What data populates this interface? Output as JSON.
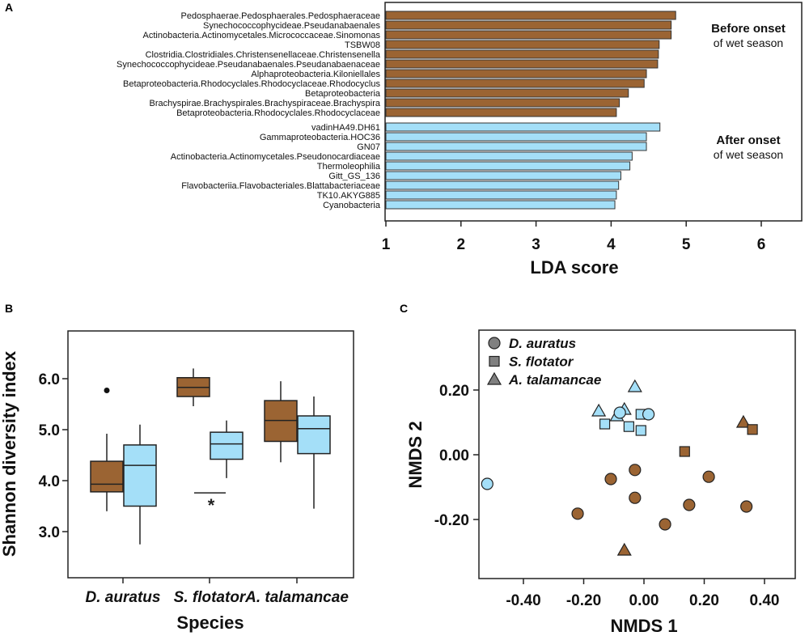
{
  "colors": {
    "before": "#9b6433",
    "after": "#a4dff8",
    "legend": "#808080"
  },
  "panel_labels": [
    "A",
    "B",
    "C"
  ],
  "chart_data": [
    {
      "type": "bar",
      "orientation": "horizontal",
      "xlabel": "LDA score",
      "xlim": [
        1,
        6.55
      ],
      "xticks": [
        "1",
        "2",
        "3",
        "4",
        "5",
        "6"
      ],
      "groups": [
        {
          "name_line1": "Before onset",
          "name_line2": "of wet season",
          "color": "before",
          "categories": [
            "Pedosphaerae.Pedosphaerales.Pedosphaeraceae",
            "Synechococcophycideae.Pseudanabaenales",
            "Actinobacteria.Actinomycetales.Micrococcaceae.Sinomonas",
            "TSBW08",
            "Clostridia.Clostridiales.Christensenellaceae.Christensenella",
            "Synechococcophycideae.Pseudanabaenales.Pseudanabaenaceae",
            "Alphaproteobacteria.Kiloniellales",
            "Betaproteobacteria.Rhodocyclales.Rhodocyclaceae.Rhodocyclus",
            "Betaproteobacteria",
            "Brachyspirae.Brachyspirales.Brachyspiraceae.Brachyspira",
            "Betaproteobacteria.Rhodocyclales.Rhodocyclaceae"
          ],
          "values": [
            4.86,
            4.8,
            4.8,
            4.64,
            4.63,
            4.62,
            4.47,
            4.44,
            4.23,
            4.11,
            4.07
          ]
        },
        {
          "name_line1": "After onset",
          "name_line2": "of wet season",
          "color": "after",
          "categories": [
            "vadinHA49.DH61",
            "Gammaproteobacteria.HOC36",
            "GN07",
            "Actinobacteria.Actinomycetales.Pseudonocardiaceae",
            "Thermoleophilia",
            "Gitt_GS_136",
            "Flavobacteriia.Flavobacteriales.Blattabacteriaceae",
            "TK10.AKYG885",
            "Cyanobacteria"
          ],
          "values": [
            4.65,
            4.47,
            4.47,
            4.28,
            4.25,
            4.13,
            4.1,
            4.07,
            4.05
          ]
        }
      ]
    },
    {
      "type": "boxplot",
      "xlabel": "Species",
      "ylabel": "Shannon diversity index",
      "ylim": [
        2.08,
        6.94
      ],
      "yticks": [
        "3.0",
        "4.0",
        "5.0",
        "6.0"
      ],
      "categories": [
        "D. auratus",
        "S. flotator",
        "A. talamancae"
      ],
      "boxes": [
        {
          "cat": 0,
          "season": "before",
          "min": 3.4,
          "q1": 3.78,
          "median": 3.93,
          "q3": 4.38,
          "max": 4.92,
          "outliers": [
            5.77
          ]
        },
        {
          "cat": 0,
          "season": "after",
          "min": 2.75,
          "q1": 3.5,
          "median": 4.3,
          "q3": 4.7,
          "max": 5.1,
          "outliers": []
        },
        {
          "cat": 1,
          "season": "before",
          "min": 5.46,
          "q1": 5.65,
          "median": 5.83,
          "q3": 6.02,
          "max": 6.2,
          "outliers": []
        },
        {
          "cat": 1,
          "season": "after",
          "min": 4.05,
          "q1": 4.42,
          "median": 4.72,
          "q3": 4.95,
          "max": 5.18,
          "outliers": []
        },
        {
          "cat": 2,
          "season": "before",
          "min": 4.36,
          "q1": 4.77,
          "median": 5.18,
          "q3": 5.57,
          "max": 5.95,
          "outliers": []
        },
        {
          "cat": 2,
          "season": "after",
          "min": 3.45,
          "q1": 4.53,
          "median": 5.02,
          "q3": 5.27,
          "max": 5.65,
          "outliers": []
        }
      ],
      "significance": {
        "category": 1,
        "y": 3.76,
        "label": "*"
      }
    },
    {
      "type": "scatter",
      "xlabel": "NMDS 1",
      "ylabel": "NMDS 2",
      "xlim": [
        -0.548,
        0.504
      ],
      "ylim": [
        -0.383,
        0.385
      ],
      "xticks": [
        "-0.40",
        "-0.20",
        "0.00",
        "0.20",
        "0.40"
      ],
      "xtick_values": [
        -0.4,
        -0.2,
        0,
        0.2,
        0.4
      ],
      "yticks": [
        "-0.20",
        "0.00",
        "0.20"
      ],
      "ytick_values": [
        -0.2,
        0,
        0.2
      ],
      "legend": {
        "position": "top-left",
        "entries": [
          {
            "label": "D. auratus",
            "shape": "circle"
          },
          {
            "label": "S. flotator",
            "shape": "square"
          },
          {
            "label": "A. talamancae",
            "shape": "triangle"
          }
        ]
      },
      "points": [
        {
          "x": -0.09,
          "y": 0.12,
          "shape": "triangle",
          "season": "after"
        },
        {
          "x": -0.52,
          "y": -0.09,
          "shape": "circle",
          "season": "after"
        },
        {
          "x": -0.15,
          "y": 0.135,
          "shape": "triangle",
          "season": "after"
        },
        {
          "x": -0.065,
          "y": 0.14,
          "shape": "triangle",
          "season": "after"
        },
        {
          "x": -0.03,
          "y": 0.21,
          "shape": "triangle",
          "season": "after"
        },
        {
          "x": -0.13,
          "y": 0.095,
          "shape": "square",
          "season": "after"
        },
        {
          "x": -0.05,
          "y": 0.087,
          "shape": "square",
          "season": "after"
        },
        {
          "x": -0.01,
          "y": 0.075,
          "shape": "square",
          "season": "after"
        },
        {
          "x": -0.01,
          "y": 0.125,
          "shape": "square",
          "season": "after"
        },
        {
          "x": -0.08,
          "y": 0.13,
          "shape": "circle",
          "season": "after"
        },
        {
          "x": 0.015,
          "y": 0.125,
          "shape": "circle",
          "season": "after"
        },
        {
          "x": -0.11,
          "y": -0.075,
          "shape": "circle",
          "season": "before"
        },
        {
          "x": -0.03,
          "y": -0.047,
          "shape": "circle",
          "season": "before"
        },
        {
          "x": -0.03,
          "y": -0.133,
          "shape": "circle",
          "season": "before"
        },
        {
          "x": -0.22,
          "y": -0.182,
          "shape": "circle",
          "season": "before"
        },
        {
          "x": 0.07,
          "y": -0.215,
          "shape": "circle",
          "season": "before"
        },
        {
          "x": 0.15,
          "y": -0.155,
          "shape": "circle",
          "season": "before"
        },
        {
          "x": 0.215,
          "y": -0.068,
          "shape": "circle",
          "season": "before"
        },
        {
          "x": 0.34,
          "y": -0.16,
          "shape": "circle",
          "season": "before"
        },
        {
          "x": 0.135,
          "y": 0.01,
          "shape": "square",
          "season": "before"
        },
        {
          "x": 0.33,
          "y": 0.1,
          "shape": "triangle",
          "season": "before"
        },
        {
          "x": 0.36,
          "y": 0.078,
          "shape": "square",
          "season": "before"
        },
        {
          "x": -0.065,
          "y": -0.295,
          "shape": "triangle",
          "season": "before"
        }
      ]
    }
  ]
}
